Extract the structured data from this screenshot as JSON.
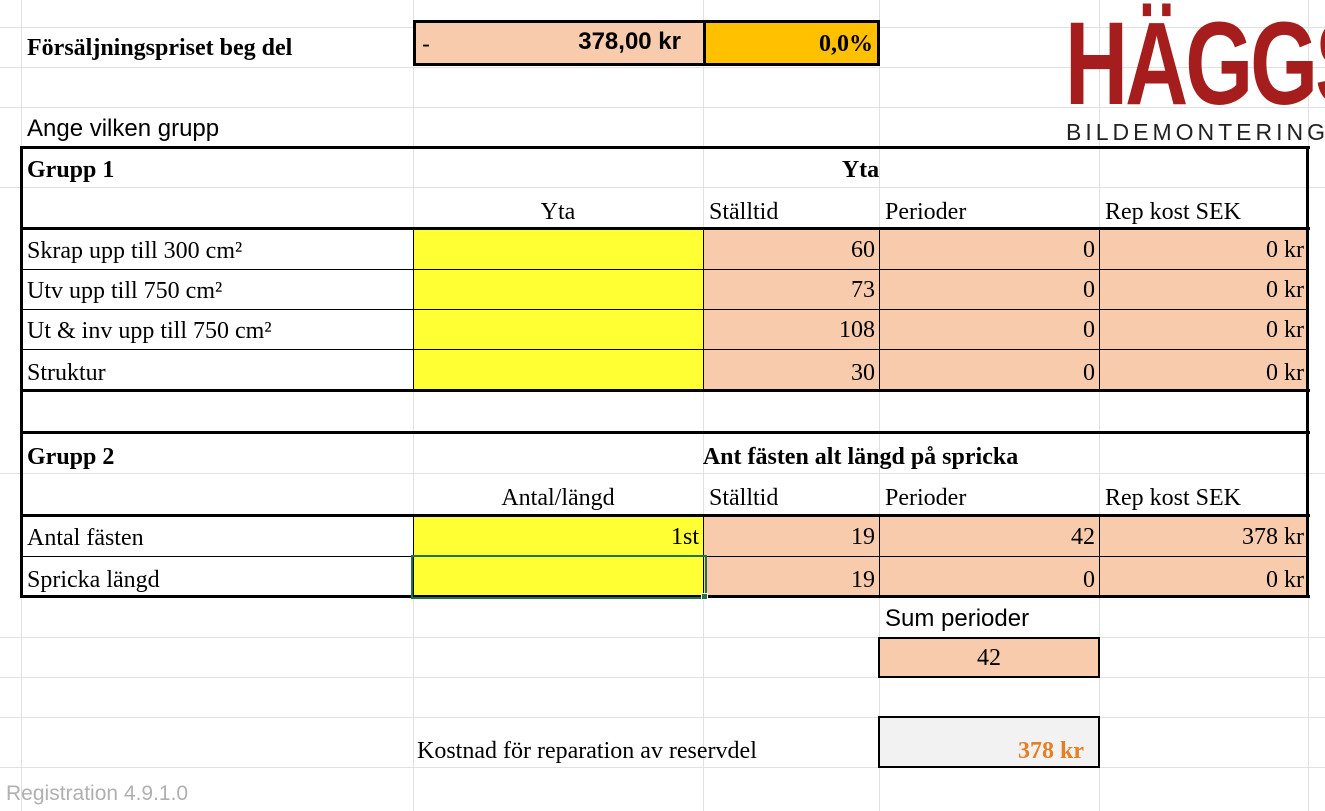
{
  "header": {
    "title": "Försäljningspriset beg del",
    "sign": "-",
    "price": "378,00 kr",
    "percent": "0,0%"
  },
  "logo": {
    "main": "HÄGGS",
    "sub": "BILDEMONTERING",
    "color": "#a61d1d"
  },
  "prompt": "Ange vilken grupp",
  "group1": {
    "label": "Grupp 1",
    "title": "Yta",
    "col_headers": [
      "Yta",
      "Ställtid",
      "Perioder",
      "Rep kost SEK"
    ],
    "rows": [
      {
        "label": "Skrap upp till 300 cm²",
        "input": "",
        "stalltid": "60",
        "perioder": "0",
        "kost": "0 kr"
      },
      {
        "label": "Utv upp till 750 cm²",
        "input": "",
        "stalltid": "73",
        "perioder": "0",
        "kost": "0 kr"
      },
      {
        "label": "Ut & inv upp till 750 cm²",
        "input": "",
        "stalltid": "108",
        "perioder": "0",
        "kost": "0 kr"
      },
      {
        "label": "Struktur",
        "input": "",
        "stalltid": "30",
        "perioder": "0",
        "kost": "0 kr"
      }
    ]
  },
  "group2": {
    "label": "Grupp 2",
    "title": "Ant fästen alt längd på spricka",
    "col_headers": [
      "Antal/längd",
      "Ställtid",
      "Perioder",
      "Rep kost SEK"
    ],
    "rows": [
      {
        "label": "Antal fästen",
        "input": "1st",
        "stalltid": "19",
        "perioder": "42",
        "kost": "378 kr"
      },
      {
        "label": "Spricka längd",
        "input": "",
        "stalltid": "19",
        "perioder": "0",
        "kost": "0 kr"
      }
    ]
  },
  "summary": {
    "sum_label": "Sum perioder",
    "sum_value": "42",
    "cost_label": "Kostnad för reparation av reservdel",
    "cost_value": "378 kr",
    "cost_color": "#e67e22"
  },
  "watermark": "Registration 4.9.1.0",
  "colors": {
    "peach": "#f8cbad",
    "yellow": "#ffff33",
    "orange": "#ffc000",
    "selection": "#217346"
  }
}
